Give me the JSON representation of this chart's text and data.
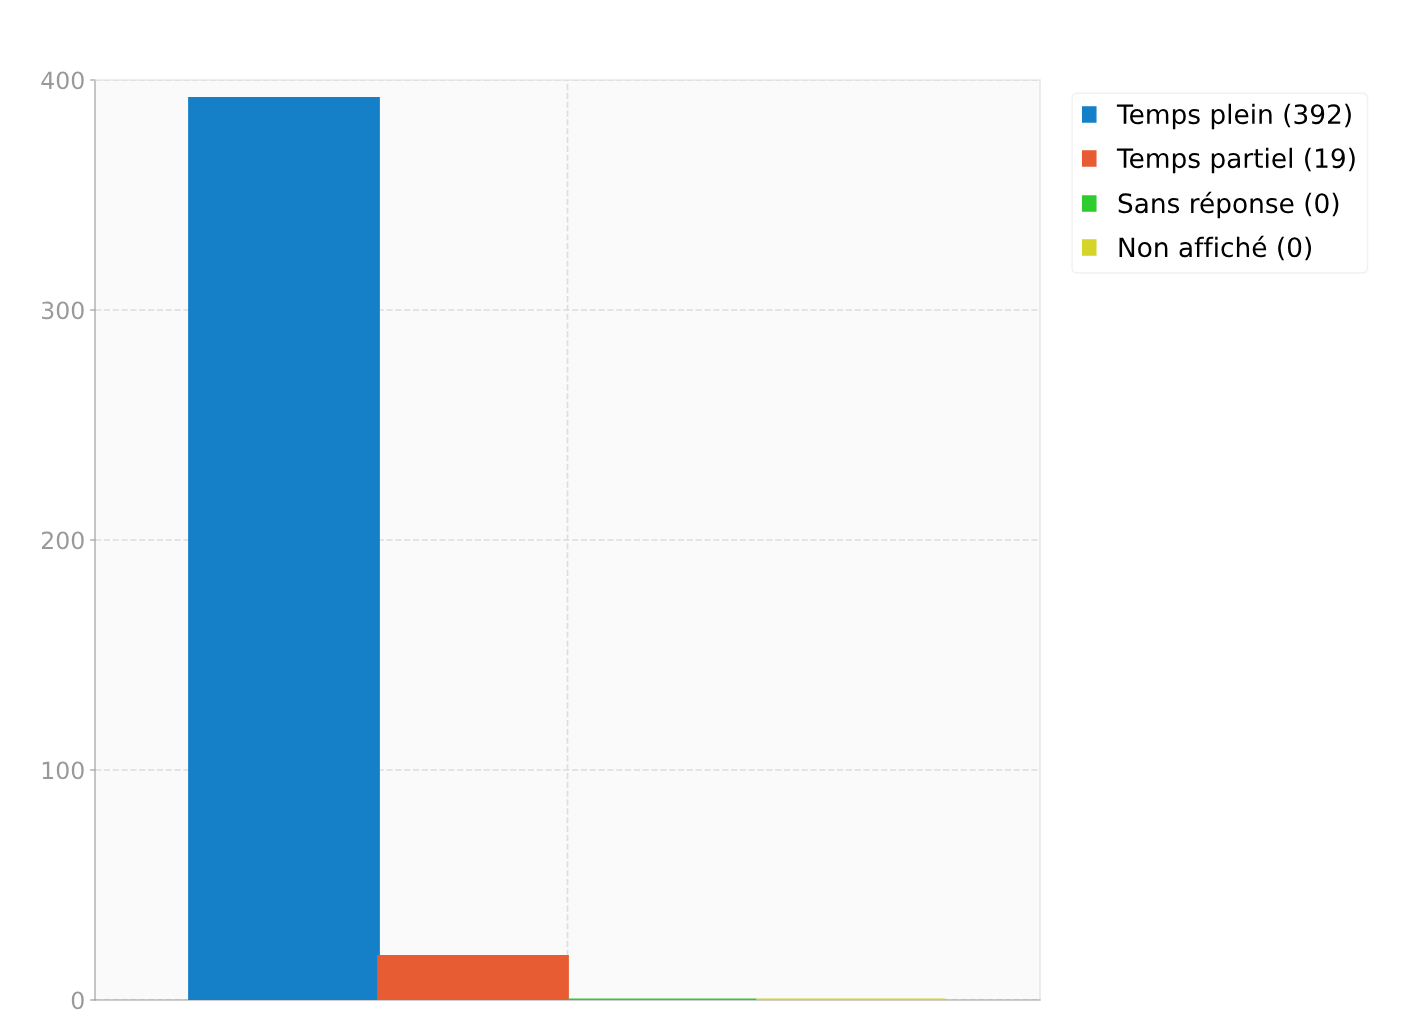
{
  "chart_data": {
    "type": "bar",
    "categories": [
      null
    ],
    "series": [
      {
        "name": "Temps plein (392)",
        "color": "#1580c8",
        "values": [
          392
        ]
      },
      {
        "name": "Temps partiel (19)",
        "color": "#e85c33",
        "values": [
          19
        ]
      },
      {
        "name": "Sans réponse (0)",
        "color": "#2ecc2e",
        "values": [
          0
        ]
      },
      {
        "name": "Non affiché (0)",
        "color": "#d4d42a",
        "values": [
          0
        ]
      }
    ],
    "ylim": [
      0,
      400
    ],
    "yticks": [
      0,
      100,
      200,
      300,
      400
    ],
    "grid": true,
    "legend": "top right"
  }
}
